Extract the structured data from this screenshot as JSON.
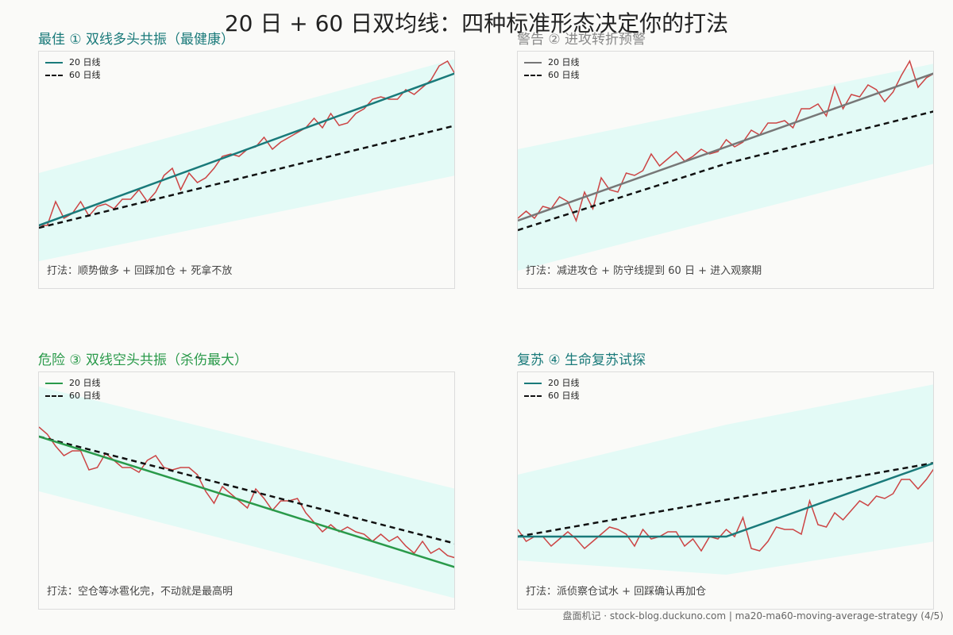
{
  "title": "20 日 + 60 日双均线：四种标准形态决定你的打法",
  "footer": "盘面机记 · stock-blog.duckuno.com | ma20-ma60-moving-average-strategy (4/5)",
  "chart_data": [
    {
      "type": "line",
      "title": "最佳 ① 双线多头共振（最健康）",
      "title_color": "#1a7a7a",
      "tactic": "打法：顺势做多 + 回踩加仓 + 死拿不放",
      "legend_placement": "top-left",
      "xlim": [
        0,
        100
      ],
      "ylim": [
        0,
        100
      ],
      "band": {
        "x": [
          0,
          100
        ],
        "upper": [
          49,
          97
        ],
        "lower": [
          12,
          48
        ],
        "color": "#e3faf6"
      },
      "series": [
        {
          "name": "20 日线",
          "role": "ma20",
          "color": "#1a7a7a",
          "dash": false,
          "x": [
            0,
            100
          ],
          "y": [
            27,
            91
          ]
        },
        {
          "name": "60 日线",
          "role": "ma60",
          "color": "#111111",
          "dash": true,
          "x": [
            0,
            100
          ],
          "y": [
            26,
            69
          ]
        },
        {
          "name": "",
          "role": "price",
          "color": "#cc4444",
          "dash": false,
          "x": [
            0,
            2,
            4,
            6,
            8,
            10,
            12,
            14,
            16,
            18,
            20,
            22,
            24,
            26,
            28,
            30,
            32,
            34,
            36,
            38,
            40,
            42,
            44,
            46,
            48,
            50,
            52,
            54,
            56,
            58,
            60,
            62,
            64,
            66,
            68,
            70,
            72,
            74,
            76,
            78,
            80,
            82,
            84,
            86,
            88,
            90,
            92,
            94,
            96,
            98,
            100
          ],
          "y": [
            27,
            27,
            37,
            30,
            32,
            37,
            31,
            35,
            36,
            34,
            38,
            38,
            42,
            37,
            41,
            48,
            51,
            42,
            49,
            45,
            47,
            51,
            56,
            57,
            56,
            59,
            60,
            64,
            59,
            62,
            64,
            66,
            68,
            72,
            68,
            74,
            69,
            70,
            74,
            76,
            80,
            81,
            80,
            80,
            84,
            82,
            85,
            88,
            94,
            96,
            90
          ]
        }
      ]
    },
    {
      "type": "line",
      "title": "警告 ② 进攻转折预警",
      "title_color": "#888888",
      "tactic": "打法：减进攻仓 + 防守线提到 60 日 + 进入观察期",
      "legend_placement": "top-left",
      "xlim": [
        0,
        100
      ],
      "ylim": [
        0,
        100
      ],
      "band": {
        "x": [
          0,
          100
        ],
        "upper": [
          59,
          95
        ],
        "lower": [
          8,
          53
        ],
        "color": "#e3faf6"
      },
      "series": [
        {
          "name": "20 日线",
          "role": "ma20",
          "color": "#777777",
          "dash": false,
          "x": [
            0,
            100
          ],
          "y": [
            29,
            91
          ]
        },
        {
          "name": "60 日线",
          "role": "ma60",
          "color": "#111111",
          "dash": true,
          "x": [
            0,
            50,
            100
          ],
          "y": [
            25,
            53,
            75
          ]
        },
        {
          "name": "",
          "role": "price",
          "color": "#cc4444",
          "dash": false,
          "x": [
            0,
            2,
            4,
            6,
            8,
            10,
            12,
            14,
            16,
            18,
            20,
            22,
            24,
            26,
            28,
            30,
            32,
            34,
            36,
            38,
            40,
            42,
            44,
            46,
            48,
            50,
            52,
            54,
            56,
            58,
            60,
            62,
            64,
            66,
            68,
            70,
            72,
            74,
            76,
            78,
            80,
            82,
            84,
            86,
            88,
            90,
            92,
            94,
            96,
            98,
            100
          ],
          "y": [
            30,
            33,
            30,
            35,
            34,
            39,
            37,
            29,
            41,
            34,
            47,
            42,
            41,
            49,
            48,
            50,
            57,
            52,
            55,
            58,
            54,
            56,
            59,
            57,
            58,
            63,
            60,
            62,
            67,
            65,
            70,
            70,
            71,
            68,
            76,
            76,
            78,
            73,
            85,
            76,
            82,
            81,
            86,
            84,
            79,
            83,
            90,
            96,
            85,
            89,
            91
          ]
        }
      ]
    },
    {
      "type": "line",
      "title": "危险 ③ 双线空头共振（杀伤最大）",
      "title_color": "#2a9a4a",
      "tactic": "打法：空仓等冰雹化完，不动就是最高明",
      "legend_placement": "top-left",
      "xlim": [
        0,
        100
      ],
      "ylim": [
        0,
        100
      ],
      "band": {
        "x": [
          0,
          100
        ],
        "upper": [
          94,
          51
        ],
        "lower": [
          50,
          5
        ],
        "color": "#e3faf6"
      },
      "series": [
        {
          "name": "20 日线",
          "role": "ma20",
          "color": "#2a9a4a",
          "dash": false,
          "x": [
            0,
            100
          ],
          "y": [
            73,
            18
          ]
        },
        {
          "name": "60 日线",
          "role": "ma60",
          "color": "#111111",
          "dash": true,
          "x": [
            0,
            100
          ],
          "y": [
            73,
            28
          ]
        },
        {
          "name": "",
          "role": "price",
          "color": "#cc4444",
          "dash": false,
          "x": [
            0,
            2,
            4,
            6,
            8,
            10,
            12,
            14,
            16,
            18,
            20,
            22,
            24,
            26,
            28,
            30,
            32,
            34,
            36,
            38,
            40,
            42,
            44,
            46,
            48,
            50,
            52,
            54,
            56,
            58,
            60,
            62,
            64,
            66,
            68,
            70,
            72,
            74,
            76,
            78,
            80,
            82,
            84,
            86,
            88,
            90,
            92,
            94,
            96,
            98,
            100
          ],
          "y": [
            77,
            74,
            69,
            65,
            67,
            67,
            59,
            60,
            66,
            63,
            60,
            60,
            58,
            63,
            65,
            60,
            59,
            60,
            60,
            57,
            50,
            45,
            52,
            49,
            46,
            43,
            51,
            47,
            42,
            46,
            46,
            47,
            41,
            37,
            33,
            36,
            33,
            35,
            33,
            32,
            29,
            32,
            29,
            31,
            27,
            24,
            29,
            24,
            26,
            23,
            22
          ]
        }
      ]
    },
    {
      "type": "line",
      "title": "复苏 ④ 生命复苏试探",
      "title_color": "#1a7a7a",
      "tactic": "打法：派侦察仓试水 + 回踩确认再加仓",
      "legend_placement": "top-left",
      "xlim": [
        0,
        100
      ],
      "ylim": [
        0,
        100
      ],
      "band": {
        "x": [
          0,
          50,
          100
        ],
        "upper": [
          57,
          78,
          95
        ],
        "lower": [
          21,
          15,
          29
        ],
        "color": "#e3faf6"
      },
      "series": [
        {
          "name": "20 日线",
          "role": "ma20",
          "color": "#1a7a7a",
          "dash": false,
          "x": [
            0,
            50,
            100
          ],
          "y": [
            31,
            31,
            62
          ]
        },
        {
          "name": "60 日线",
          "role": "ma60",
          "color": "#111111",
          "dash": true,
          "x": [
            0,
            100
          ],
          "y": [
            31,
            62
          ]
        },
        {
          "name": "",
          "role": "price",
          "color": "#cc4444",
          "dash": false,
          "x": [
            0,
            2,
            4,
            6,
            8,
            10,
            12,
            14,
            16,
            18,
            20,
            22,
            24,
            26,
            28,
            30,
            32,
            34,
            36,
            38,
            40,
            42,
            44,
            46,
            48,
            50,
            52,
            54,
            56,
            58,
            60,
            62,
            64,
            66,
            68,
            70,
            72,
            74,
            76,
            78,
            80,
            82,
            84,
            86,
            88,
            90,
            92,
            94,
            96,
            98,
            100
          ],
          "y": [
            34,
            29,
            31,
            31,
            27,
            30,
            33,
            30,
            26,
            29,
            32,
            35,
            34,
            32,
            27,
            34,
            30,
            31,
            33,
            33,
            27,
            30,
            25,
            31,
            30,
            34,
            31,
            39,
            26,
            25,
            29,
            35,
            34,
            34,
            32,
            46,
            36,
            35,
            41,
            38,
            42,
            46,
            44,
            48,
            47,
            49,
            55,
            55,
            51,
            55,
            60
          ]
        }
      ]
    }
  ]
}
